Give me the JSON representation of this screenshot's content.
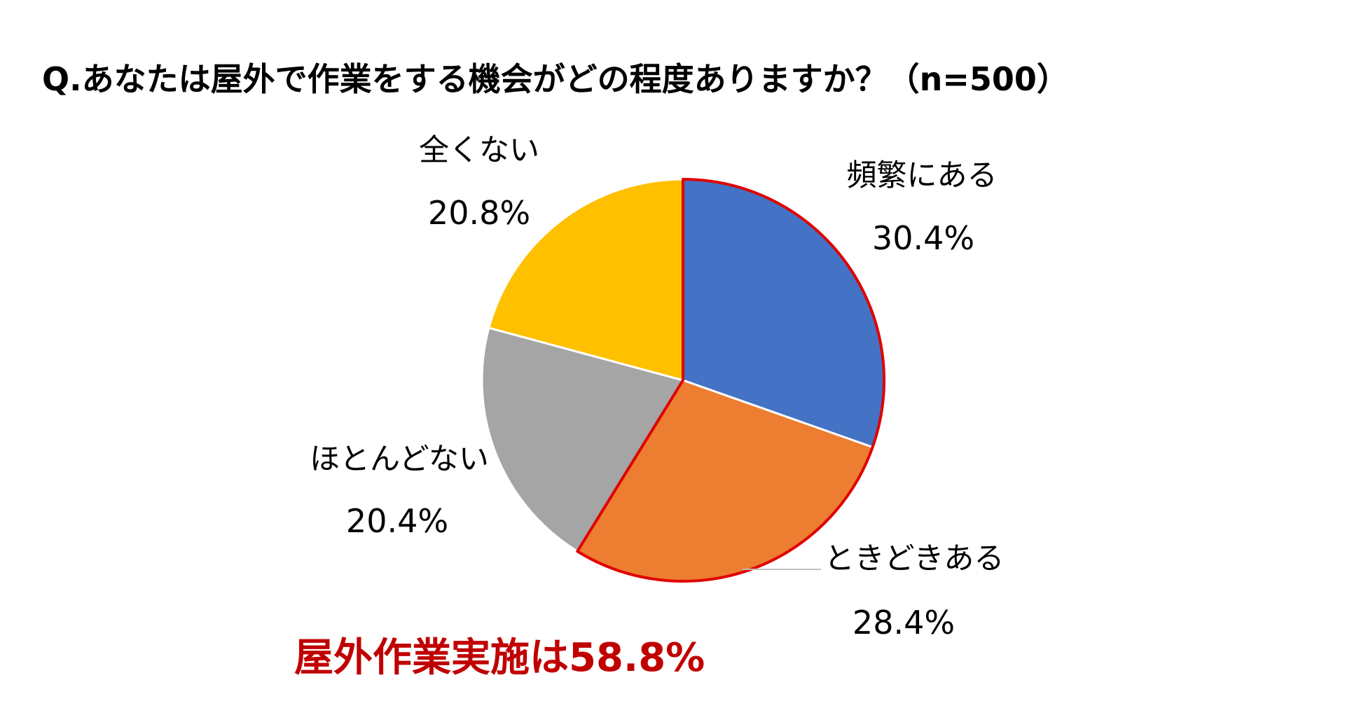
{
  "chart_data": {
    "type": "pie",
    "title": "Q.あなたは屋外で作業をする機会がどの程度ありますか？（n=500）",
    "categories": [
      "頻繁にある",
      "ときどきある",
      "ほとんどない",
      "全くない"
    ],
    "values": [
      30.4,
      28.4,
      20.4,
      20.8
    ],
    "value_labels": [
      "30.4%",
      "28.4%",
      "20.4%",
      "20.8%"
    ],
    "colors": [
      "#4472C4",
      "#ED7D31",
      "#A5A5A5",
      "#FFC000"
    ],
    "highlighted_categories": [
      "頻繁にある",
      "ときどきある"
    ],
    "highlight_border_color": "#E00000",
    "start_angle_deg": 0,
    "direction": "clockwise"
  },
  "annotation": {
    "text": "屋外作業実施は58.8%",
    "color": "#C00000"
  }
}
